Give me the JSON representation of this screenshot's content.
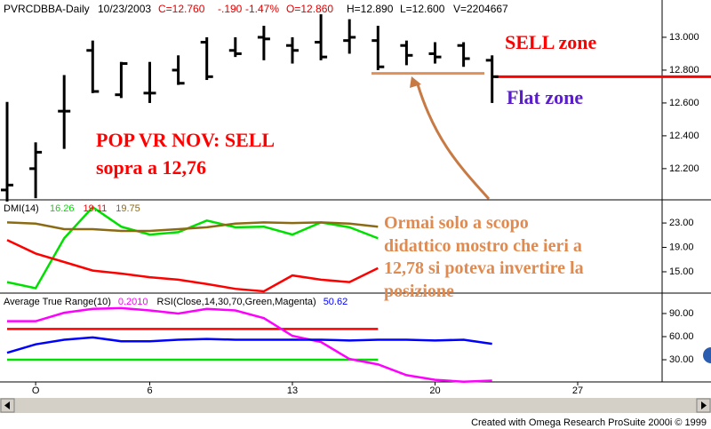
{
  "header": {
    "symbol": "PVRCDBBA-Daily",
    "date": "10/23/2003",
    "close": "C=12.760",
    "change": "-.190",
    "change_pct": "-1.47%",
    "open": "O=12.860",
    "high": "H=12.890",
    "low": "L=12.600",
    "volume": "V=2204667"
  },
  "footer": "Created with Omega Research ProSuite 2000i © 1999",
  "chart_data": [
    {
      "type": "ohlc",
      "color": "#000000",
      "categories": [
        null,
        "O",
        null,
        null,
        null,
        "6",
        null,
        null,
        null,
        null,
        "13",
        null,
        null,
        null,
        null,
        "20",
        null,
        null,
        null,
        null,
        "27"
      ],
      "open": [
        12.07,
        12.2,
        12.55,
        12.92,
        12.65,
        12.66,
        12.8,
        12.97,
        12.92,
        13.0,
        12.95,
        12.97,
        12.98,
        12.98,
        12.95,
        12.9,
        12.95,
        12.86,
        null,
        null,
        null
      ],
      "high": [
        12.606,
        12.36,
        12.77,
        12.98,
        12.85,
        12.85,
        12.89,
        13.0,
        13.0,
        13.07,
        13.0,
        13.14,
        13.11,
        13.07,
        12.98,
        12.97,
        12.97,
        12.89,
        null,
        null,
        null
      ],
      "low": [
        12.0,
        12.02,
        12.32,
        12.66,
        12.63,
        12.6,
        12.71,
        12.74,
        12.88,
        12.86,
        12.84,
        12.86,
        12.9,
        12.8,
        12.83,
        12.84,
        12.82,
        12.6,
        null,
        null,
        null
      ],
      "close": [
        12.1,
        12.3,
        12.55,
        12.67,
        12.84,
        12.66,
        12.72,
        12.76,
        12.9,
        12.99,
        12.92,
        12.88,
        13.0,
        12.82,
        12.89,
        12.88,
        12.87,
        12.76,
        null,
        null,
        null
      ],
      "ylim": [
        12.01,
        13.227
      ],
      "yticks": [
        {
          "value": 12.2,
          "label": "12.200"
        },
        {
          "value": 12.4,
          "label": "12.400"
        },
        {
          "value": 12.6,
          "label": "12.600"
        },
        {
          "value": 12.8,
          "label": "12.800"
        },
        {
          "value": 13.0,
          "label": "13.000"
        }
      ],
      "levels": [
        {
          "value": 12.78,
          "color": "#e0905a"
        },
        {
          "value": 12.76,
          "color": "#ff0000"
        }
      ],
      "annotations": [
        {
          "text": "POP VR NOV: SELL",
          "color": "#ff0000"
        },
        {
          "text": "sopra a 12,76",
          "color": "#ff0000"
        },
        {
          "text": "SELL zone",
          "color": "#ff0000"
        },
        {
          "text": "Flat zone",
          "color": "#5a1ec8"
        },
        {
          "text": "Ormai solo a scopo",
          "color": "#e08a50"
        },
        {
          "text": "didattico mostro che ieri a",
          "color": "#e08a50"
        },
        {
          "text": "12,78 si poteva invertire la",
          "color": "#e08a50"
        },
        {
          "text": "posizione",
          "color": "#e08a50"
        }
      ]
    },
    {
      "type": "line",
      "title": "DMI(14)",
      "ylim": [
        11.5,
        26.8
      ],
      "yticks": [
        {
          "value": 15,
          "label": "15.00"
        },
        {
          "value": 19,
          "label": "19.00"
        },
        {
          "value": 23,
          "label": "23.00"
        }
      ],
      "series": [
        {
          "color": "#00e000",
          "current": "16.26",
          "values": [
            13.3,
            12.3,
            20.5,
            25.6,
            22.4,
            21.1,
            21.5,
            23.4,
            22.3,
            22.4,
            21.1,
            23.1,
            22.3,
            20.5,
            null,
            null,
            null,
            null,
            null,
            null,
            null
          ]
        },
        {
          "color": "#ff0000",
          "current": "19.11",
          "values": [
            20.2,
            18.0,
            16.6,
            15.2,
            14.7,
            14.1,
            13.7,
            13.0,
            12.2,
            11.8,
            14.4,
            13.7,
            13.3,
            15.6,
            null,
            null,
            null,
            null,
            null,
            null,
            null
          ]
        },
        {
          "color": "#8b6a14",
          "current": "19.75",
          "values": [
            23.1,
            22.9,
            22.0,
            22.0,
            21.7,
            21.7,
            22.0,
            22.3,
            22.9,
            23.1,
            23.0,
            23.1,
            22.9,
            22.4,
            null,
            null,
            null,
            null,
            null,
            null,
            null
          ]
        }
      ]
    },
    {
      "type": "line",
      "ylim": [
        1.2,
        116.5
      ],
      "yticks": [
        {
          "value": 30,
          "label": "30.00"
        },
        {
          "value": 60,
          "label": "60.00"
        },
        {
          "value": 90,
          "label": "90.00"
        }
      ],
      "levels": [
        {
          "value": 70,
          "color": "#ff0000"
        },
        {
          "value": 30,
          "color": "#00e000"
        }
      ],
      "series": [
        {
          "name": "Average True Range(10)",
          "color": "#ff00ff",
          "current": "0.2010",
          "values": [
            80,
            80,
            91,
            96,
            97,
            94,
            90,
            96,
            94,
            84,
            61,
            53,
            31,
            24,
            10,
            4,
            1.5,
            3,
            null,
            null,
            null
          ]
        },
        {
          "name": "RSI(Close,14,30,70,Green,Magenta)",
          "color": "#0000ff",
          "current": "50.62",
          "values": [
            39,
            50,
            56,
            59,
            54,
            54,
            56,
            57,
            56,
            56,
            56,
            56,
            55,
            56,
            56,
            55,
            56,
            50.62,
            null,
            null,
            null
          ]
        }
      ]
    }
  ]
}
